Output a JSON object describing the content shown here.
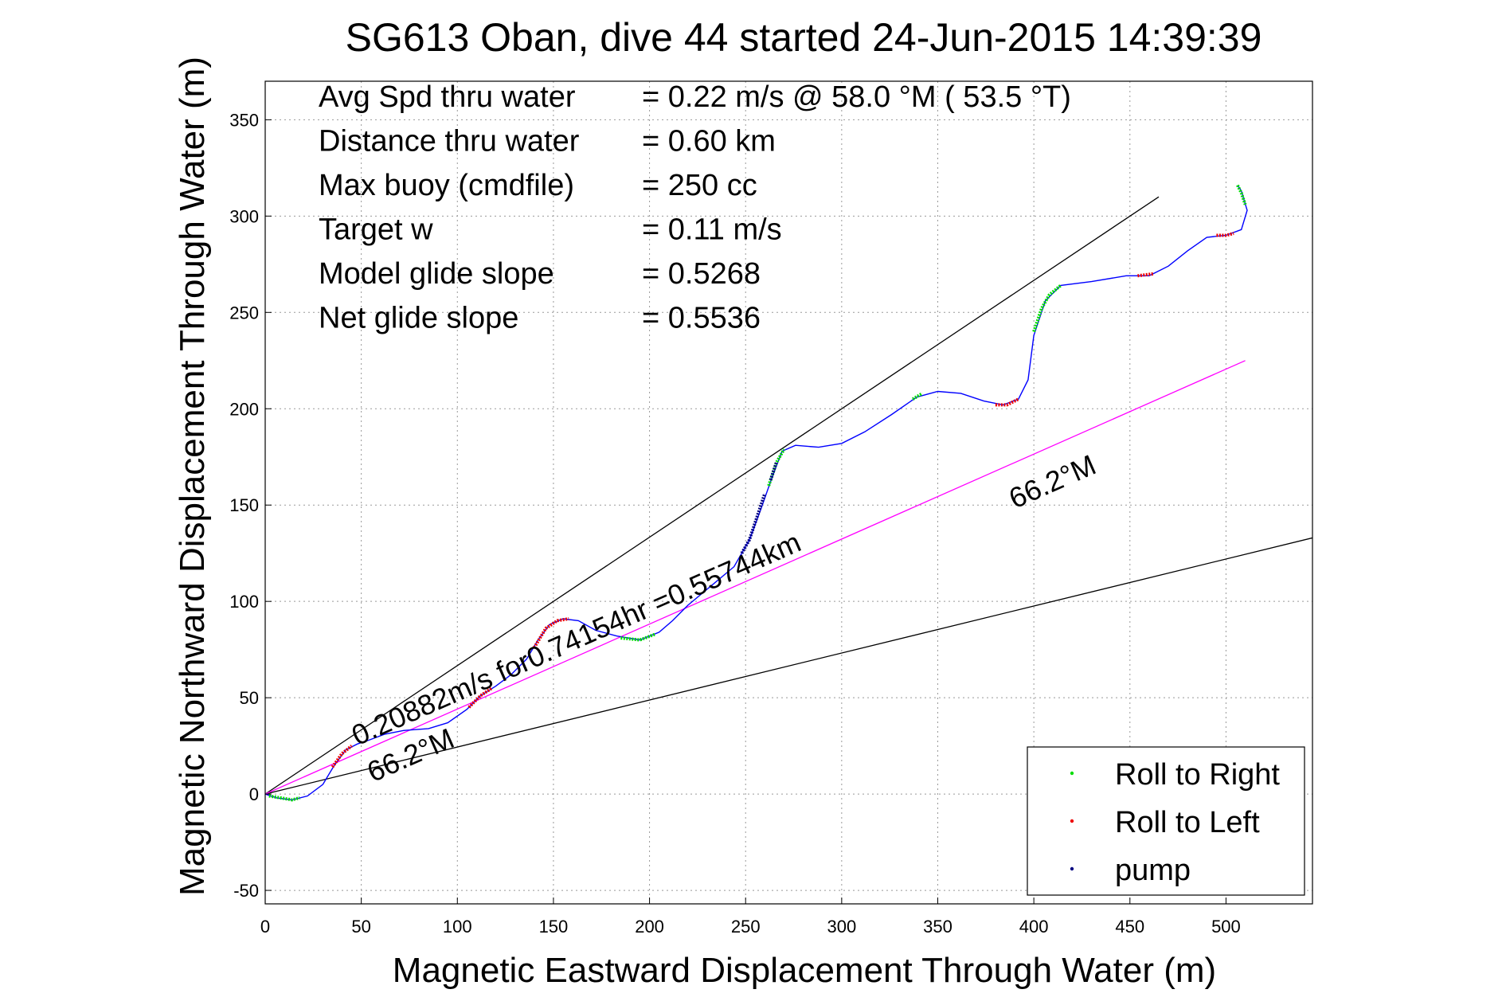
{
  "chart_data": {
    "type": "line",
    "title": "SG613 Oban, dive 44 started 24-Jun-2015 14:39:39",
    "xlabel": "Magnetic Eastward Displacement Through Water (m)",
    "ylabel": "Magnetic Northward Displacement Through Water (m)",
    "xlim": [
      0,
      545
    ],
    "ylim": [
      -57,
      370
    ],
    "x_ticks": [
      0,
      50,
      100,
      150,
      200,
      250,
      300,
      350,
      400,
      450,
      500
    ],
    "y_ticks": [
      -50,
      0,
      50,
      100,
      150,
      200,
      250,
      300,
      350
    ],
    "grid": true,
    "legend_position": "bottom-right",
    "stats": [
      {
        "label": "Avg Spd thru water",
        "value": "=  0.22 m/s @  58.0 °M ( 53.5 °T)"
      },
      {
        "label": "Distance thru water",
        "value": "=  0.60 km"
      },
      {
        "label": "Max buoy (cmdfile)",
        "value": "= 250 cc"
      },
      {
        "label": "Target w",
        "value": "= 0.11 m/s"
      },
      {
        "label": "Model glide slope",
        "value": "= 0.5268"
      },
      {
        "label": "Net glide slope",
        "value": "= 0.5536"
      }
    ],
    "annotations": [
      {
        "text": "0.20882m/s for0.74154hr =0.55744km",
        "x": 48,
        "y": 25,
        "angle_deg": 23.8
      },
      {
        "text": "66.2°M",
        "x": 56,
        "y": 6,
        "angle_deg": 23.8
      },
      {
        "text": "66.2°M",
        "x": 390,
        "y": 148,
        "angle_deg": 23.8
      }
    ],
    "reference_lines": [
      {
        "name": "upper glide bound",
        "color": "#000000",
        "points": [
          [
            0,
            0
          ],
          [
            465,
            310
          ]
        ]
      },
      {
        "name": "lower glide bound",
        "color": "#000000",
        "points": [
          [
            0,
            0
          ],
          [
            545,
            133
          ]
        ]
      },
      {
        "name": "net track 66.2°M",
        "color": "#ff00ff",
        "points": [
          [
            0,
            0
          ],
          [
            510,
            225
          ]
        ]
      }
    ],
    "track": {
      "color": "#0000ff",
      "points": [
        [
          0,
          0
        ],
        [
          6,
          -2
        ],
        [
          14,
          -3
        ],
        [
          22,
          -1
        ],
        [
          30,
          5
        ],
        [
          36,
          15
        ],
        [
          42,
          23
        ],
        [
          48,
          26
        ],
        [
          54,
          28
        ],
        [
          62,
          31
        ],
        [
          72,
          33
        ],
        [
          85,
          34
        ],
        [
          95,
          37
        ],
        [
          105,
          44
        ],
        [
          112,
          51
        ],
        [
          120,
          56
        ],
        [
          128,
          62
        ],
        [
          136,
          70
        ],
        [
          142,
          80
        ],
        [
          148,
          88
        ],
        [
          155,
          91
        ],
        [
          163,
          90
        ],
        [
          172,
          85
        ],
        [
          183,
          82
        ],
        [
          195,
          80
        ],
        [
          205,
          84
        ],
        [
          212,
          90
        ],
        [
          220,
          98
        ],
        [
          232,
          108
        ],
        [
          244,
          118
        ],
        [
          252,
          132
        ],
        [
          258,
          148
        ],
        [
          264,
          165
        ],
        [
          269,
          178
        ],
        [
          276,
          181
        ],
        [
          288,
          180
        ],
        [
          300,
          182
        ],
        [
          312,
          188
        ],
        [
          326,
          197
        ],
        [
          339,
          206
        ],
        [
          350,
          209
        ],
        [
          362,
          208
        ],
        [
          374,
          204
        ],
        [
          384,
          202
        ],
        [
          392,
          205
        ],
        [
          397,
          215
        ],
        [
          400,
          238
        ],
        [
          406,
          256
        ],
        [
          414,
          264
        ],
        [
          430,
          266
        ],
        [
          448,
          269
        ],
        [
          460,
          269
        ],
        [
          470,
          274
        ],
        [
          480,
          282
        ],
        [
          490,
          289
        ],
        [
          500,
          290
        ],
        [
          508,
          293
        ],
        [
          511,
          303
        ],
        [
          508,
          313
        ],
        [
          506,
          316
        ]
      ]
    },
    "series": [
      {
        "name": "Roll to Right",
        "color": "#00dd00",
        "segments": [
          [
            [
              2,
              -1
            ],
            [
              8,
              -2
            ],
            [
              14,
              -3
            ],
            [
              18,
              -2
            ]
          ],
          [
            [
              185,
              81
            ],
            [
              195,
              80
            ],
            [
              203,
              83
            ]
          ],
          [
            [
              262,
              160
            ],
            [
              266,
              172
            ],
            [
              270,
              179
            ]
          ],
          [
            [
              337,
              205
            ],
            [
              342,
              208
            ]
          ],
          [
            [
              400,
              240
            ],
            [
              404,
              252
            ],
            [
              408,
              259
            ],
            [
              414,
              264
            ]
          ],
          [
            [
              506,
              316
            ],
            [
              508,
              312
            ],
            [
              510,
              306
            ]
          ]
        ]
      },
      {
        "name": "Roll to Left",
        "color": "#ee0000",
        "segments": [
          [
            [
              35,
              14
            ],
            [
              40,
              21
            ],
            [
              45,
              25
            ]
          ],
          [
            [
              106,
              45
            ],
            [
              112,
              51
            ],
            [
              118,
              55
            ]
          ],
          [
            [
              140,
              76
            ],
            [
              146,
              86
            ],
            [
              152,
              90
            ],
            [
              158,
              91
            ]
          ],
          [
            [
              380,
              202
            ],
            [
              386,
              202
            ],
            [
              392,
              205
            ]
          ],
          [
            [
              454,
              269
            ],
            [
              462,
              270
            ]
          ],
          [
            [
              495,
              290
            ],
            [
              500,
              290
            ],
            [
              504,
              291
            ]
          ]
        ]
      },
      {
        "name": "pump",
        "color": "#000080",
        "segments": [
          [
            [
              248,
              125
            ],
            [
              252,
              132
            ],
            [
              256,
              144
            ],
            [
              260,
              156
            ]
          ],
          [
            [
              263,
              163
            ],
            [
              266,
              172
            ]
          ]
        ]
      }
    ]
  }
}
